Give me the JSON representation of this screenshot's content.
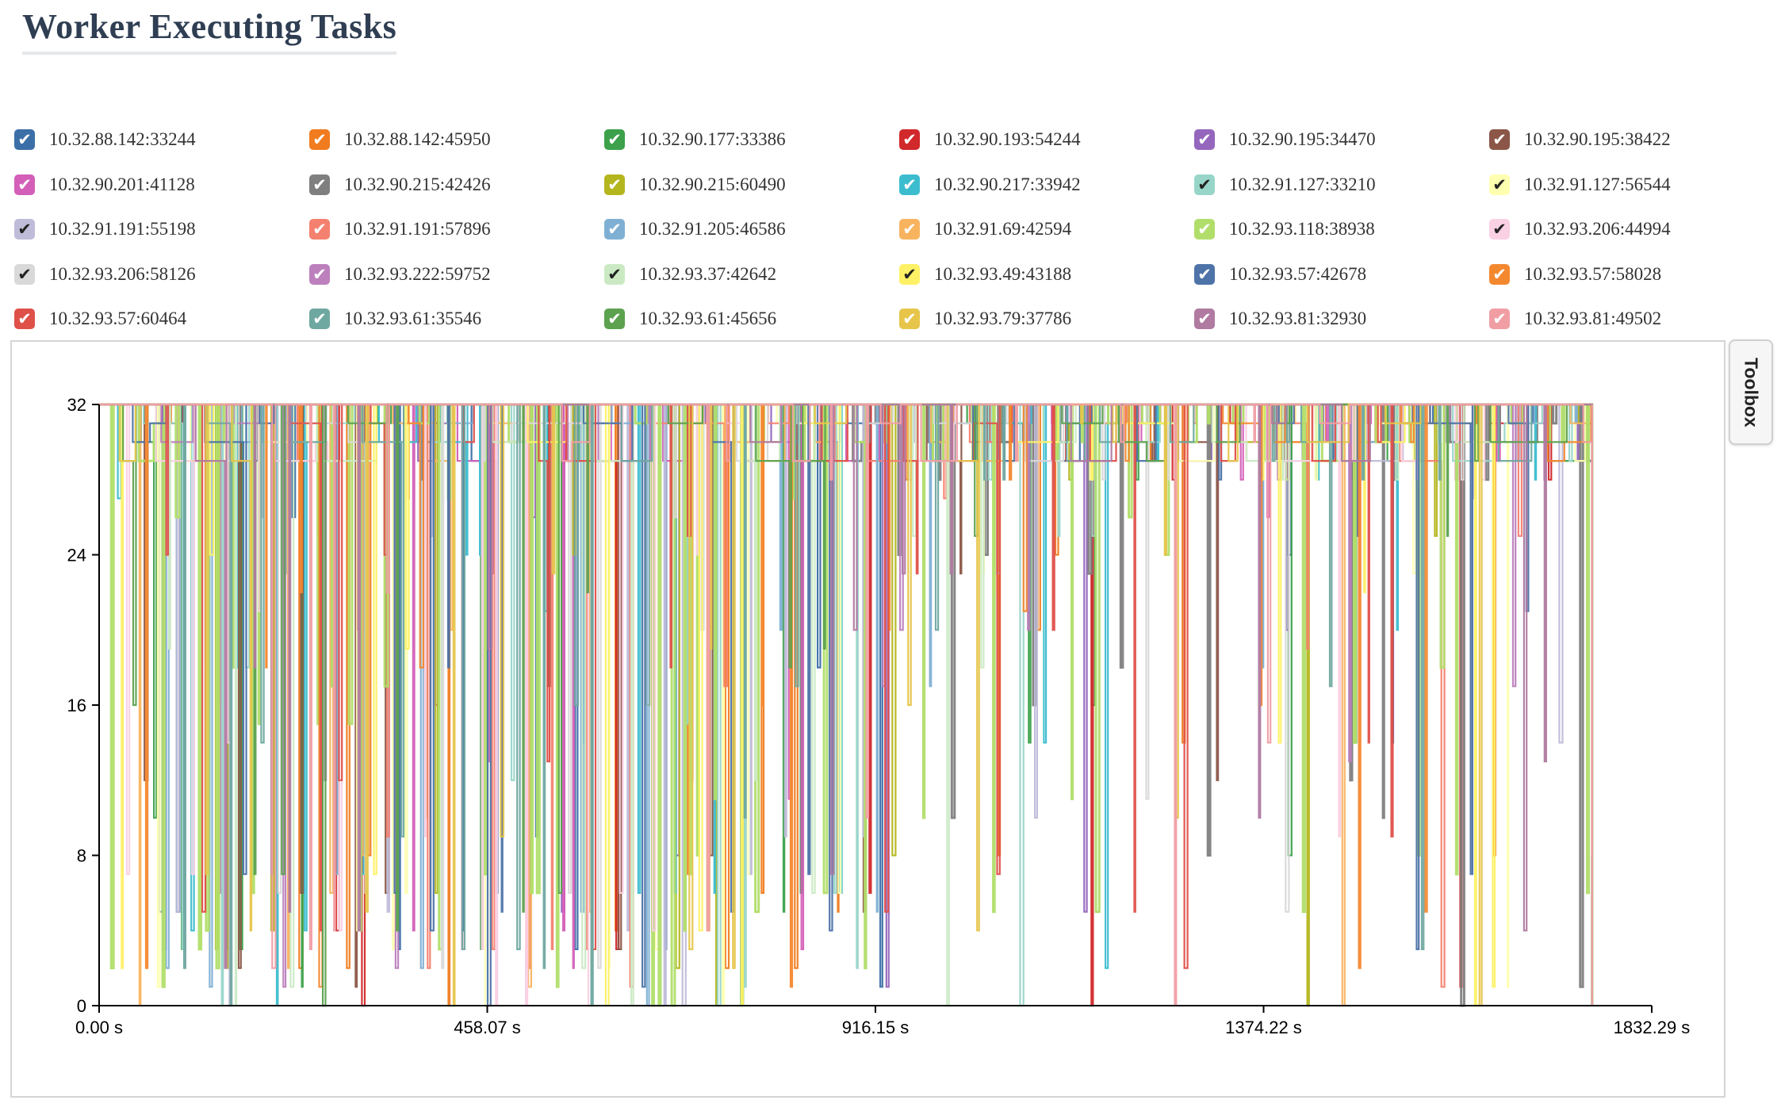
{
  "page": {
    "title": "Worker Executing Tasks"
  },
  "toolbox": {
    "label": "Toolbox"
  },
  "legend": [
    {
      "label": "10.32.88.142:33244",
      "color": "#3c6fa8",
      "checked": true
    },
    {
      "label": "10.32.88.142:45950",
      "color": "#f07c1f",
      "checked": true
    },
    {
      "label": "10.32.90.177:33386",
      "color": "#3ca14a",
      "checked": true
    },
    {
      "label": "10.32.90.193:54244",
      "color": "#d1282b",
      "checked": true
    },
    {
      "label": "10.32.90.195:34470",
      "color": "#9566bd",
      "checked": true
    },
    {
      "label": "10.32.90.195:38422",
      "color": "#8b5647",
      "checked": true
    },
    {
      "label": "10.32.90.201:41128",
      "color": "#d35fb8",
      "checked": true
    },
    {
      "label": "10.32.90.215:42426",
      "color": "#7f7f7f",
      "checked": true
    },
    {
      "label": "10.32.90.215:60490",
      "color": "#b4b61e",
      "checked": true
    },
    {
      "label": "10.32.90.217:33942",
      "color": "#3cbdcf",
      "checked": true
    },
    {
      "label": "10.32.91.127:33210",
      "color": "#98d5c9",
      "checked": true
    },
    {
      "label": "10.32.91.127:56544",
      "color": "#ffffb0",
      "checked": true
    },
    {
      "label": "10.32.91.191:55198",
      "color": "#bfbcd9",
      "checked": true
    },
    {
      "label": "10.32.91.191:57896",
      "color": "#f4816f",
      "checked": true
    },
    {
      "label": "10.32.91.205:46586",
      "color": "#7fb0d4",
      "checked": true
    },
    {
      "label": "10.32.91.69:42594",
      "color": "#f8b35f",
      "checked": true
    },
    {
      "label": "10.32.93.118:38938",
      "color": "#b1de6a",
      "checked": true
    },
    {
      "label": "10.32.93.206:44994",
      "color": "#fad0e3",
      "checked": true
    },
    {
      "label": "10.32.93.206:58126",
      "color": "#d9d9d9",
      "checked": true
    },
    {
      "label": "10.32.93.222:59752",
      "color": "#bc80bd",
      "checked": true
    },
    {
      "label": "10.32.93.37:42642",
      "color": "#cbeac4",
      "checked": true
    },
    {
      "label": "10.32.93.49:43188",
      "color": "#fef165",
      "checked": true
    },
    {
      "label": "10.32.93.57:42678",
      "color": "#4d73a8",
      "checked": true
    },
    {
      "label": "10.32.93.57:58028",
      "color": "#f4882f",
      "checked": true
    },
    {
      "label": "10.32.93.57:60464",
      "color": "#df5049",
      "checked": true
    },
    {
      "label": "10.32.93.61:35546",
      "color": "#6fa8a0",
      "checked": true
    },
    {
      "label": "10.32.93.61:45656",
      "color": "#5ca24f",
      "checked": true
    },
    {
      "label": "10.32.93.79:37786",
      "color": "#e6c54a",
      "checked": true
    },
    {
      "label": "10.32.93.81:32930",
      "color": "#b07aa1",
      "checked": true
    },
    {
      "label": "10.32.93.81:49502",
      "color": "#f09ea4",
      "checked": true
    }
  ],
  "chart_data": {
    "type": "line",
    "title": "Worker Executing Tasks",
    "xlabel": "",
    "ylabel": "",
    "x_range": [
      0,
      1832.29
    ],
    "y_range": [
      0,
      32
    ],
    "x_ticks": [
      "0.00 s",
      "458.07 s",
      "916.15 s",
      "1374.22 s",
      "1832.29 s"
    ],
    "y_ticks": [
      "0",
      "8",
      "16",
      "24",
      "32"
    ],
    "grid": false,
    "legend_position": "top",
    "note_series_shape": "step lines; each worker mostly at 32 executing tasks with frequent drops; activity ends near 1760 s",
    "series_summary": [
      {
        "name": "10.32.93.118:38938",
        "active_until": 1760,
        "typical": 32
      },
      {
        "name": "10.32.90.215:42426",
        "active_from": 900,
        "active_until": 1765,
        "typical": 30
      },
      {
        "name": "10.32.90.217:33942",
        "active_until": 1760,
        "typical": 32
      },
      {
        "name": "10.32.90.201:41128",
        "active_until": 1760,
        "typical": 32
      },
      {
        "name": "10.32.93.57:42678",
        "active_until": 1760,
        "typical": 31
      }
    ]
  }
}
